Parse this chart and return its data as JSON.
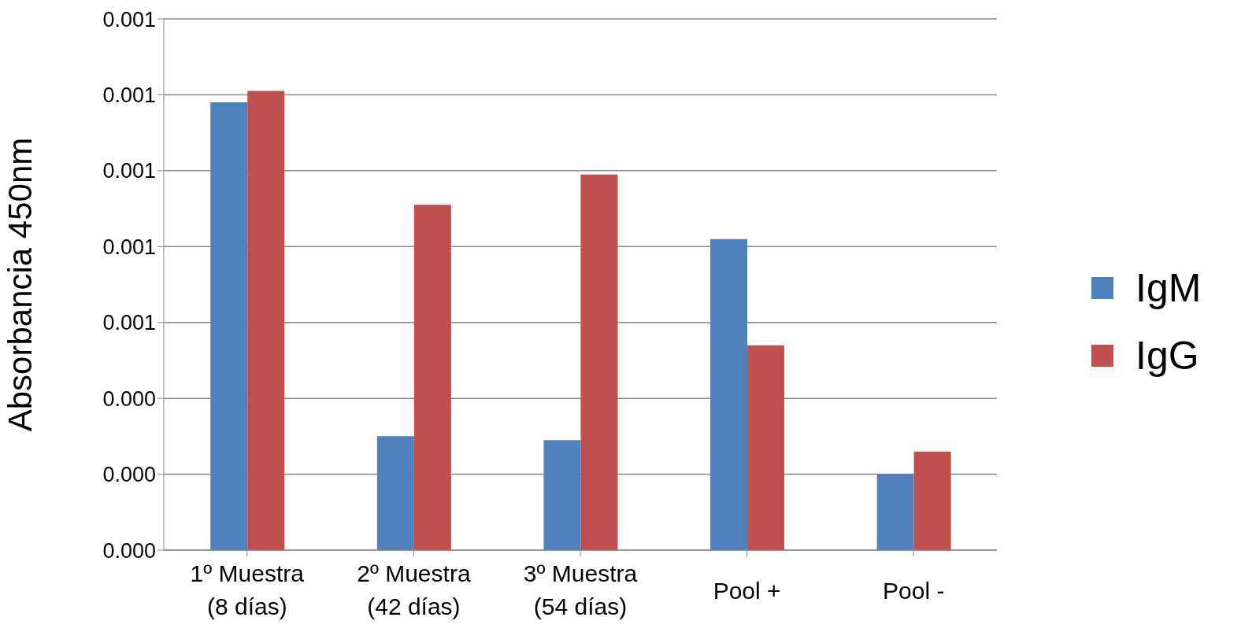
{
  "chart_data": {
    "type": "bar",
    "ylabel": "Absorbancia  450nm",
    "categories": [
      "1º Muestra\n(8 días)",
      "2º Muestra\n(42 días)",
      "3º Muestra\n(54 días)",
      "Pool +",
      "Pool -"
    ],
    "series": [
      {
        "name": "IgM",
        "color": "#4f81bd",
        "values": [
          0.00118,
          0.0003,
          0.00029,
          0.00082,
          0.0002
        ]
      },
      {
        "name": "IgG",
        "color": "#c0504d",
        "values": [
          0.00121,
          0.00091,
          0.00099,
          0.00054,
          0.00026
        ]
      }
    ],
    "ylim": [
      0,
      0.0014
    ],
    "yticks": [
      {
        "value": 0,
        "label": "0.000"
      },
      {
        "value": 0.0002,
        "label": "0.000"
      },
      {
        "value": 0.0004,
        "label": "0.000"
      },
      {
        "value": 0.0006,
        "label": "0.001"
      },
      {
        "value": 0.0008,
        "label": "0.001"
      },
      {
        "value": 0.001,
        "label": "0.001"
      },
      {
        "value": 0.0012,
        "label": "0.001"
      },
      {
        "value": 0.0014,
        "label": "0.001"
      }
    ],
    "grid": "y",
    "legend": "right"
  }
}
